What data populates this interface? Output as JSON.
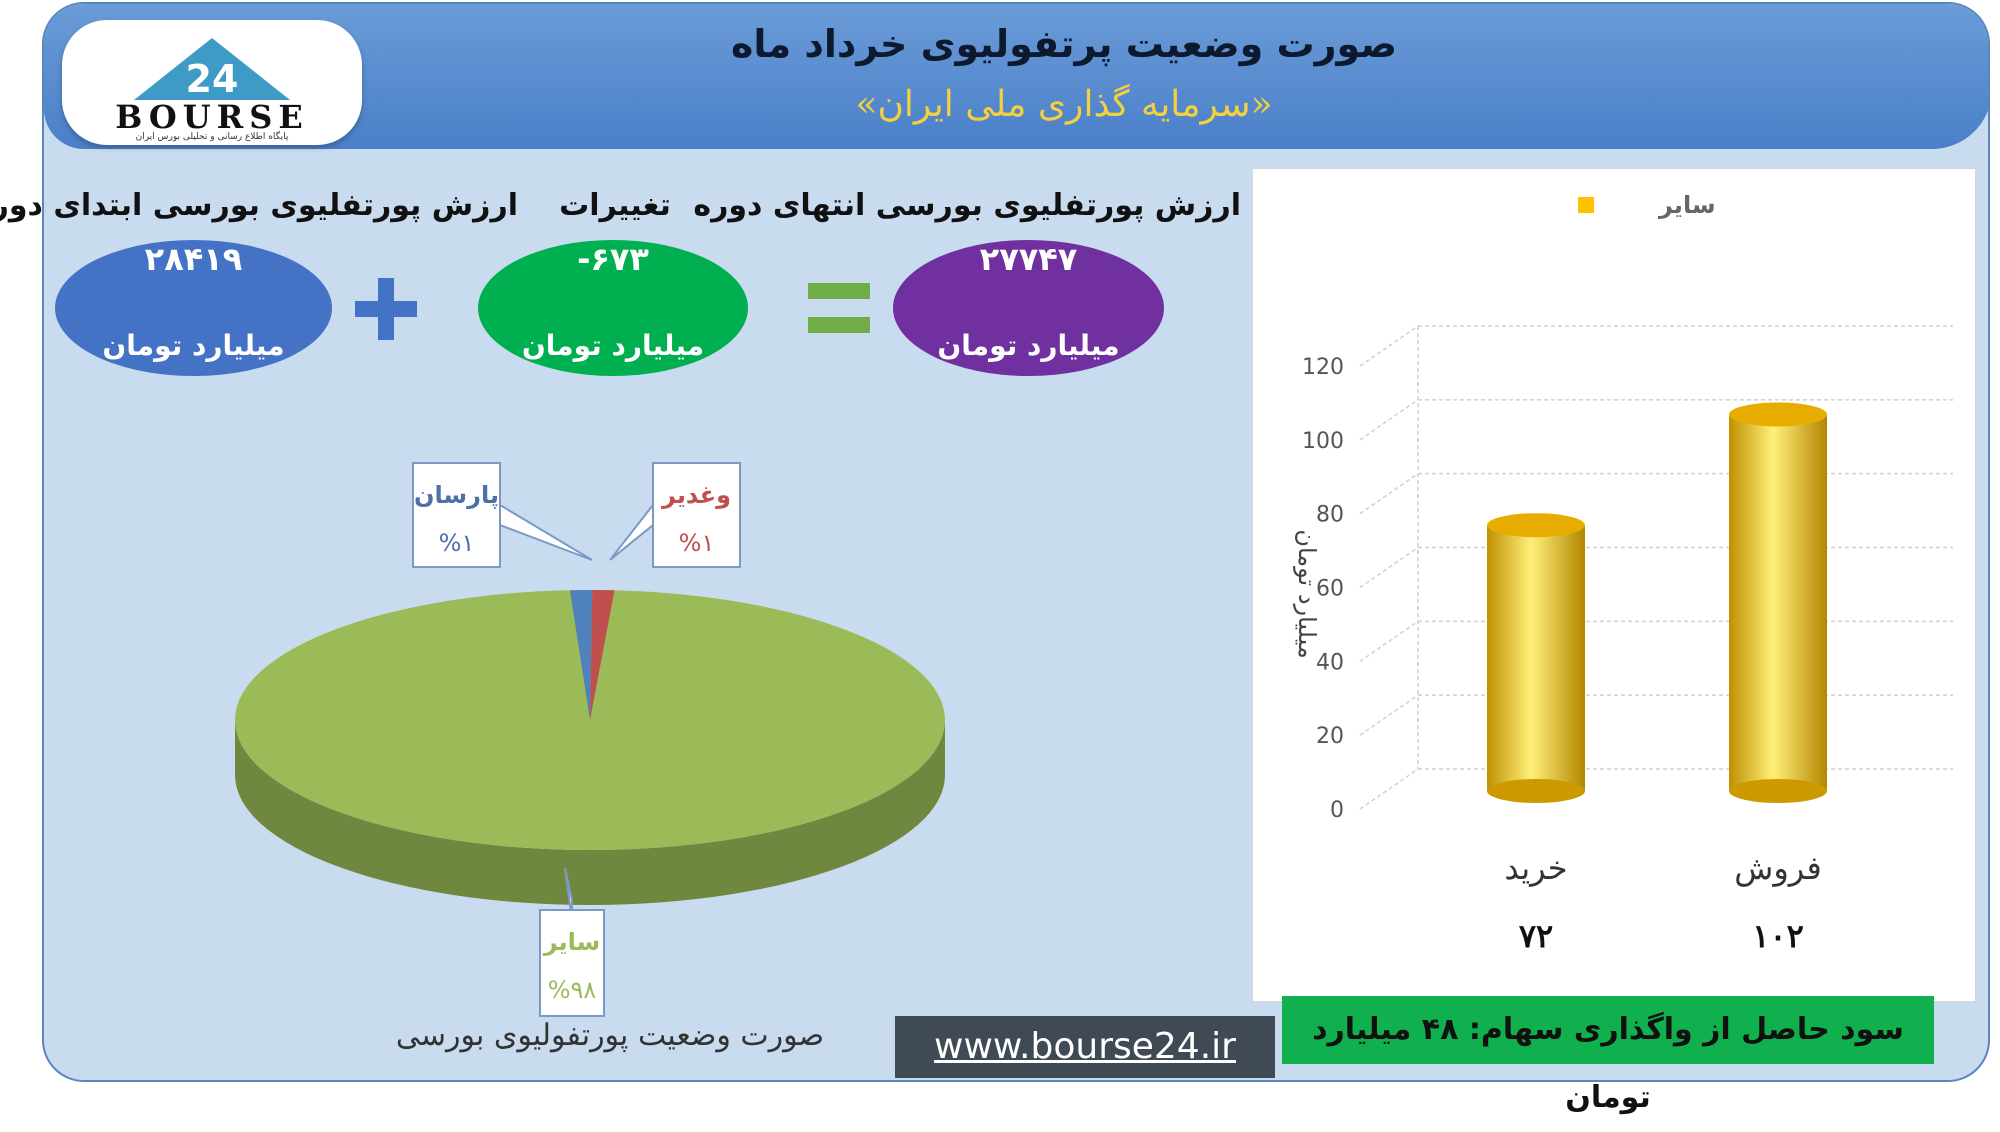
{
  "header": {
    "title": "صورت وضعیت پرتفولیوی خرداد ماه",
    "subtitle": "«سرمایه گذاری ملی ایران»"
  },
  "logo": {
    "mark": "24",
    "text": "BOURSE",
    "tagline": "پایگاه اطلاع رسانی و تحلیلی بورس ایران"
  },
  "summary": {
    "start": {
      "label": "ارزش پورتفلیوی بورسی ابتدای دوره",
      "value": "۲۸۴۱۹",
      "unit": "میلیارد تومان",
      "color": "#4472c4"
    },
    "change": {
      "label": "تغییرات",
      "value": "-۶۷۳",
      "unit": "میلیارد تومان",
      "color": "#00b050"
    },
    "end": {
      "label": "ارزش پورتفلیوی بورسی انتهای دوره",
      "value": "۲۷۷۴۷",
      "unit": "میلیارد تومان",
      "color": "#7030a0"
    },
    "plus_color": "#4472c4",
    "equals_color": "#70ad47"
  },
  "chart_data": [
    {
      "type": "pie",
      "title": "صورت وضعیت پورتفولیوی بورسی",
      "slices": [
        {
          "name": "سایر",
          "value": 98,
          "label": "%۹۸",
          "color": "#9bbb59",
          "label_color": "#9bbb59"
        },
        {
          "name": "پارسان",
          "value": 1,
          "label": "%۱",
          "color": "#4f81bd",
          "label_color": "#4f6fa8"
        },
        {
          "name": "وغدیر",
          "value": 1,
          "label": "%۱",
          "color": "#c0504d",
          "label_color": "#c0504d"
        }
      ]
    },
    {
      "type": "bar",
      "categories": [
        "خرید",
        "فروش"
      ],
      "series": [
        {
          "name": "سایر",
          "values": [
            72,
            102
          ],
          "color": "#ffc000"
        }
      ],
      "category_value_labels": [
        "۷۲",
        "۱۰۲"
      ],
      "ylabel": "میلیارد تومان",
      "ylim": [
        0,
        120
      ],
      "yticks": [
        0,
        20,
        40,
        60,
        80,
        100,
        120
      ],
      "grid": true,
      "legend": "top"
    }
  ],
  "profit_note": "سود حاصل از واگذاری سهام: ۴۸ میلیارد تومان",
  "footer": {
    "url": "www.bourse24.ir"
  }
}
